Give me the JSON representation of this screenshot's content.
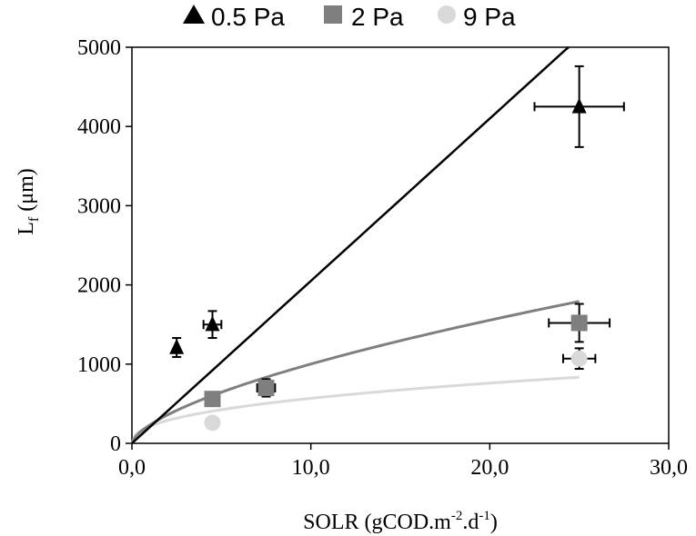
{
  "chart_data": {
    "type": "scatter",
    "title": "",
    "xlabel": {
      "main": "SOLR (gCOD.m",
      "sup1": "-2",
      "mid": ".d",
      "sup2": "-1",
      "end": ")"
    },
    "ylabel": {
      "main": "L",
      "sub": "f",
      "unit": " (μm)"
    },
    "xlim": [
      0,
      30
    ],
    "ylim": [
      0,
      5000
    ],
    "x_ticks": [
      0,
      10,
      20,
      30
    ],
    "x_tick_labels": [
      "0,0",
      "10,0",
      "20,0",
      "30,0"
    ],
    "y_ticks": [
      0,
      1000,
      2000,
      3000,
      4000,
      5000
    ],
    "y_tick_labels": [
      "0",
      "1000",
      "2000",
      "3000",
      "4000",
      "5000"
    ],
    "grid": false,
    "legend_position": "top",
    "series": [
      {
        "name": "0.5 Pa",
        "marker": "triangle",
        "color": "#000000",
        "points": [
          {
            "x": 2.5,
            "y": 1210,
            "yerr": 120,
            "xerr": 0
          },
          {
            "x": 4.5,
            "y": 1500,
            "yerr": 170,
            "xerr": 0.5
          },
          {
            "x": 25.0,
            "y": 4250,
            "yerr": 510,
            "xerr": 2.5
          }
        ],
        "fit": {
          "a": 205,
          "b": 1.0,
          "x_end": 24.4,
          "color": "#000000"
        }
      },
      {
        "name": "2 Pa",
        "marker": "square",
        "color": "#7f7f7f",
        "points": [
          {
            "x": 4.5,
            "y": 560,
            "yerr": 60,
            "xerr": 0
          },
          {
            "x": 7.5,
            "y": 700,
            "yerr": 110,
            "xerr": 0.5
          },
          {
            "x": 25.0,
            "y": 1520,
            "yerr": 240,
            "xerr": 1.7
          }
        ],
        "fit": {
          "a": 232,
          "b": 0.635,
          "x_end": 25.0,
          "color": "#7f7f7f"
        }
      },
      {
        "name": "9 Pa",
        "marker": "circle",
        "color": "#d9d9d9",
        "points": [
          {
            "x": 4.5,
            "y": 260,
            "yerr": 0,
            "xerr": 0
          },
          {
            "x": 25.0,
            "y": 1070,
            "yerr": 130,
            "xerr": 0.9
          }
        ],
        "fit": {
          "a": 216,
          "b": 0.42,
          "x_end": 25.0,
          "color": "#d9d9d9"
        }
      }
    ]
  }
}
